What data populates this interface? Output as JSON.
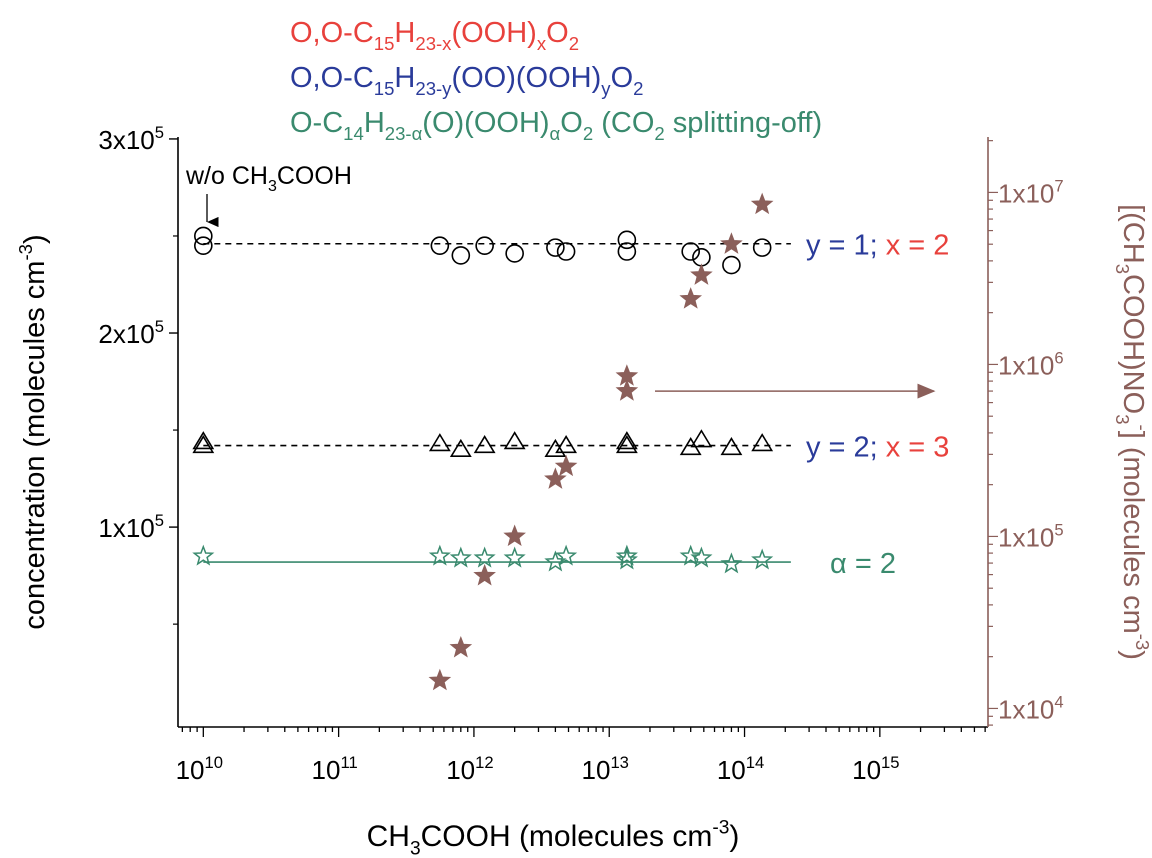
{
  "chart_data": {
    "type": "scatter",
    "legend": {
      "entries": [
        {
          "key": "legend_red",
          "pieces": [
            [
              "O,O-C",
              "n"
            ],
            [
              "15",
              "sub"
            ],
            [
              "H",
              "n"
            ],
            [
              "23-x",
              "sub"
            ],
            [
              "(OOH)",
              "n"
            ],
            [
              "x",
              "sub"
            ],
            [
              "O",
              "n"
            ],
            [
              "2",
              "sub"
            ]
          ],
          "color": "#e8413c"
        },
        {
          "key": "legend_blue",
          "pieces": [
            [
              "O,O-C",
              "n"
            ],
            [
              "15",
              "sub"
            ],
            [
              "H",
              "n"
            ],
            [
              "23-y",
              "sub"
            ],
            [
              "(OO)(OOH)",
              "n"
            ],
            [
              "y",
              "sub"
            ],
            [
              "O",
              "n"
            ],
            [
              "2",
              "sub"
            ]
          ],
          "color": "#2a3b9a"
        },
        {
          "key": "legend_green",
          "pieces": [
            [
              "O-C",
              "n"
            ],
            [
              "14",
              "sub"
            ],
            [
              "H",
              "n"
            ],
            [
              "23-α",
              "sub"
            ],
            [
              "(O)(OOH)",
              "n"
            ],
            [
              "α",
              "sub"
            ],
            [
              "O",
              "n"
            ],
            [
              "2",
              "sub"
            ],
            [
              " (CO",
              "n"
            ],
            [
              "2",
              "sub"
            ],
            [
              " splitting-off)",
              "n"
            ]
          ],
          "color": "#3a8a6e"
        }
      ]
    },
    "x_axis": {
      "label_pieces": [
        [
          "CH",
          "n"
        ],
        [
          "3",
          "sub"
        ],
        [
          "COOH (molecules cm",
          "n"
        ],
        [
          "-3",
          "sup"
        ],
        [
          ")",
          "n"
        ]
      ],
      "scale": "log",
      "range": [
        6500000000.0,
        6300000000000000.0
      ],
      "ticks": [
        {
          "value": 10000000000.0,
          "base": "10",
          "exp": "10"
        },
        {
          "value": 100000000000.0,
          "base": "10",
          "exp": "11"
        },
        {
          "value": 1000000000000.0,
          "base": "10",
          "exp": "12"
        },
        {
          "value": 10000000000000.0,
          "base": "10",
          "exp": "13"
        },
        {
          "value": 100000000000000.0,
          "base": "10",
          "exp": "14"
        },
        {
          "value": 1000000000000000.0,
          "base": "10",
          "exp": "15"
        }
      ]
    },
    "y_left": {
      "label_pieces": [
        [
          "concentration (molecules cm",
          "n"
        ],
        [
          "-3",
          "sup"
        ],
        [
          ")",
          "n"
        ]
      ],
      "scale": "linear",
      "range": [
        -3000,
        301000
      ],
      "ticks": [
        {
          "value": 100000,
          "base": "1x10",
          "exp": "5"
        },
        {
          "value": 200000,
          "base": "2x10",
          "exp": "5"
        },
        {
          "value": 300000,
          "base": "3x10",
          "exp": "5"
        }
      ],
      "minor_ticks": [
        50000,
        150000,
        250000
      ]
    },
    "y_right": {
      "label_pieces": [
        [
          "[(CH",
          "n"
        ],
        [
          "3",
          "sub"
        ],
        [
          "COOH)NO",
          "n"
        ],
        [
          "3",
          "sub"
        ],
        [
          "-",
          "sup"
        ],
        [
          "] (molecules cm",
          "n"
        ],
        [
          "-3",
          "sup"
        ],
        [
          ")",
          "n"
        ]
      ],
      "scale": "log",
      "range": [
        7800,
        21000000
      ],
      "ticks": [
        {
          "value": 10000,
          "base": "1x10",
          "exp": "4"
        },
        {
          "value": 100000,
          "base": "1x10",
          "exp": "5"
        },
        {
          "value": 1000000,
          "base": "1x10",
          "exp": "6"
        },
        {
          "value": 10000000,
          "base": "1x10",
          "exp": "7"
        }
      ]
    },
    "series": [
      {
        "marker": "circle",
        "axis": "left",
        "stroke": "#000000",
        "fill": "none",
        "points": [
          [
            10000000000.0,
            250000
          ],
          [
            10000000000.0,
            245000
          ],
          [
            560000000000.0,
            245000
          ],
          [
            800000000000.0,
            240000
          ],
          [
            1200000000000.0,
            245000
          ],
          [
            2000000000000.0,
            241000
          ],
          [
            4000000000000.0,
            244000
          ],
          [
            4800000000000.0,
            242000
          ],
          [
            13500000000000.0,
            248000
          ],
          [
            13500000000000.0,
            242000
          ],
          [
            40000000000000.0,
            242000
          ],
          [
            48000000000000.0,
            239000
          ],
          [
            80000000000000.0,
            235000
          ],
          [
            135000000000000.0,
            244000
          ]
        ]
      },
      {
        "marker": "triangle",
        "axis": "left",
        "stroke": "#000000",
        "fill": "none",
        "points": [
          [
            10000000000.0,
            144000
          ],
          [
            10000000000.0,
            142000
          ],
          [
            560000000000.0,
            143000
          ],
          [
            800000000000.0,
            140000
          ],
          [
            1200000000000.0,
            142000
          ],
          [
            2000000000000.0,
            144000
          ],
          [
            4000000000000.0,
            140000
          ],
          [
            4800000000000.0,
            142000
          ],
          [
            13500000000000.0,
            144000
          ],
          [
            13500000000000.0,
            142000
          ],
          [
            40000000000000.0,
            141000
          ],
          [
            48000000000000.0,
            145000
          ],
          [
            80000000000000.0,
            141000
          ],
          [
            135000000000000.0,
            143000
          ]
        ]
      },
      {
        "marker": "open-star",
        "axis": "left",
        "stroke": "#3a8a6e",
        "fill": "none",
        "points": [
          [
            10000000000.0,
            85000
          ],
          [
            560000000000.0,
            85000
          ],
          [
            800000000000.0,
            84000
          ],
          [
            1200000000000.0,
            84000
          ],
          [
            2000000000000.0,
            84000
          ],
          [
            4000000000000.0,
            82000
          ],
          [
            4800000000000.0,
            85000
          ],
          [
            13500000000000.0,
            85000
          ],
          [
            13500000000000.0,
            83000
          ],
          [
            40000000000000.0,
            85000
          ],
          [
            48000000000000.0,
            84000
          ],
          [
            80000000000000.0,
            81000
          ],
          [
            135000000000000.0,
            83000
          ]
        ]
      },
      {
        "marker": "filled-star",
        "axis": "right",
        "stroke": "#8b5f5a",
        "fill": "#8b5f5a",
        "points": [
          [
            560000000000.0,
            14500
          ],
          [
            800000000000.0,
            22500
          ],
          [
            1200000000000.0,
            59000
          ],
          [
            2000000000000.0,
            100000
          ],
          [
            4000000000000.0,
            215000
          ],
          [
            4800000000000.0,
            255000
          ],
          [
            13500000000000.0,
            855000
          ],
          [
            13500000000000.0,
            700000
          ],
          [
            40000000000000.0,
            2400000
          ],
          [
            48000000000000.0,
            3300000
          ],
          [
            80000000000000.0,
            5000000
          ],
          [
            135000000000000.0,
            8500000
          ]
        ]
      }
    ],
    "fit_lines": [
      {
        "axis": "left",
        "x": [
          10000000000.0,
          220000000000000.0
        ],
        "y": 246000,
        "style": "dashed",
        "color": "#000000"
      },
      {
        "axis": "left",
        "x": [
          10000000000.0,
          220000000000000.0
        ],
        "y": 142000,
        "style": "dashed",
        "color": "#000000"
      },
      {
        "axis": "left",
        "x": [
          10000000000.0,
          220000000000000.0
        ],
        "y": 82000,
        "style": "solid",
        "color": "#3a8a6e"
      }
    ],
    "annotations": {
      "no_acid": {
        "pieces": [
          [
            "w/o CH",
            "n"
          ],
          [
            "3",
            "sub"
          ],
          [
            "COOH",
            "n"
          ]
        ],
        "color": "#000000"
      },
      "line1": {
        "a": "y = 1;",
        "a_color": "#2a3b9a",
        "b": "x = 2",
        "b_color": "#e8413c"
      },
      "line2": {
        "a": "y = 2;",
        "a_color": "#2a3b9a",
        "b": "x = 3",
        "b_color": "#e8413c"
      },
      "line3": {
        "a": "α = 2",
        "a_color": "#3a8a6e"
      },
      "axis_arrow_color": "#8b5f5a"
    },
    "colors": {
      "axis_right": "#8b5f5a",
      "axis_left": "#000000"
    }
  }
}
